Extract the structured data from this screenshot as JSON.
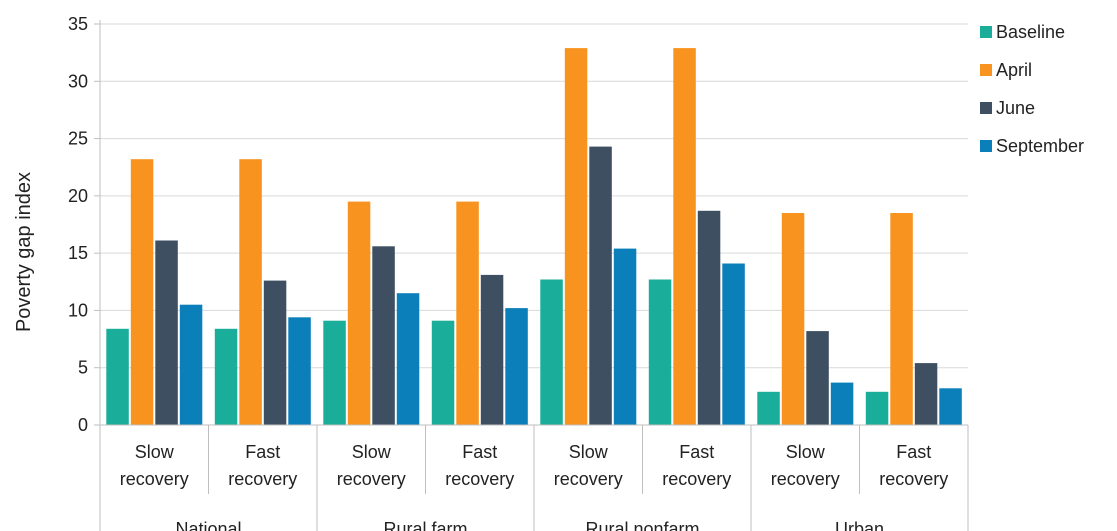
{
  "chart_data": {
    "type": "bar",
    "title": "",
    "ylabel": "Poverty gap index",
    "ylim": [
      0,
      35
    ],
    "yticks": [
      0,
      5,
      10,
      15,
      20,
      25,
      30,
      35
    ],
    "grid": true,
    "legend_position": "right",
    "groups": [
      "National",
      "Rural farm",
      "Rural nonfarm",
      "Urban"
    ],
    "categories": [
      {
        "line1": "Slow",
        "line2": "recovery"
      },
      {
        "line1": "Fast",
        "line2": "recovery"
      },
      {
        "line1": "Slow",
        "line2": "recovery"
      },
      {
        "line1": "Fast",
        "line2": "recovery"
      },
      {
        "line1": "Slow",
        "line2": "recovery"
      },
      {
        "line1": "Fast",
        "line2": "recovery"
      },
      {
        "line1": "Slow",
        "line2": "recovery"
      },
      {
        "line1": "Fast",
        "line2": "recovery"
      }
    ],
    "series": [
      {
        "name": "Baseline",
        "color": "#1aae9a",
        "values": [
          8.4,
          8.4,
          9.1,
          9.1,
          12.7,
          12.7,
          2.9,
          2.9
        ]
      },
      {
        "name": "April",
        "color": "#f7931e",
        "values": [
          23.2,
          23.2,
          19.5,
          19.5,
          32.9,
          32.9,
          18.5,
          18.5
        ]
      },
      {
        "name": "June",
        "color": "#3d4f60",
        "values": [
          16.1,
          12.6,
          15.6,
          13.1,
          24.3,
          18.7,
          8.2,
          5.4
        ]
      },
      {
        "name": "September",
        "color": "#0b7fb9",
        "values": [
          10.5,
          9.4,
          11.5,
          10.2,
          15.4,
          14.1,
          3.7,
          3.2
        ]
      }
    ]
  }
}
